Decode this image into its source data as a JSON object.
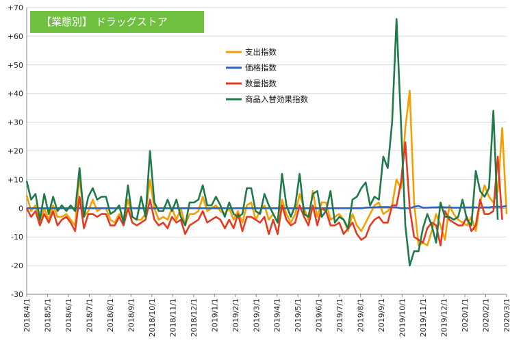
{
  "chart_data": {
    "type": "line",
    "title": "【業態別】 ドラッグストア",
    "title_bg": "#70c040",
    "ylim": [
      -30,
      70
    ],
    "y_ticks": [
      70,
      60,
      50,
      40,
      30,
      20,
      10,
      0,
      -10,
      -20,
      -30
    ],
    "y_tick_labels": [
      "+70",
      "+60",
      "+50",
      "+40",
      "+30",
      "+20",
      "+10",
      "0",
      "-10",
      "-20",
      "-30"
    ],
    "x_tick_labels": [
      "2018/4/1",
      "2018/5/1",
      "2018/6/1",
      "2018/7/1",
      "2018/8/1",
      "2018/9/1",
      "2018/10/1",
      "2018/11/1",
      "2018/12/1",
      "2019/1/1",
      "2019/2/1",
      "2019/3/1",
      "2019/4/1",
      "2019/5/1",
      "2019/6/1",
      "2019/7/1",
      "2019/8/1",
      "2019/9/1",
      "2019/10/1",
      "2019/11/1",
      "2019/12/1",
      "2020/1/1",
      "2020/2/1",
      "2020/3/1"
    ],
    "grid": true,
    "legend_position": "top-center",
    "series": [
      {
        "name": "支出指数",
        "color": "#f5a000",
        "values": [
          4.5,
          -1,
          1,
          -5,
          0,
          -4,
          1,
          -3,
          -3,
          -2,
          -4,
          -6,
          11,
          -3,
          -1,
          3,
          -1,
          0,
          0,
          -4,
          -5,
          -2,
          -4,
          3,
          -3,
          -4,
          -4,
          -2,
          10,
          0,
          -4,
          -3,
          -4,
          0,
          -4,
          0,
          -6,
          -2,
          -2,
          -1,
          4,
          -1,
          0,
          1,
          -1,
          -2,
          0,
          -4,
          -1,
          -5,
          1,
          2,
          -4,
          -1,
          1,
          -4,
          -2,
          -5,
          3,
          -2,
          -5,
          -2,
          5,
          0,
          -4,
          6,
          -3,
          2,
          2,
          -4,
          -3,
          -2,
          -4,
          -8,
          -2,
          -6,
          -8,
          -5,
          -2,
          1,
          2,
          -2,
          -1,
          1,
          10,
          7,
          28,
          41,
          2,
          -13,
          -12,
          -13,
          -8,
          -2,
          -6,
          -11,
          1,
          -2,
          -4,
          -5,
          -6,
          -3,
          -8,
          2,
          8,
          4,
          2,
          6,
          28,
          -2
        ]
      },
      {
        "name": "価格指数",
        "color": "#2a62c8",
        "values": [
          0,
          0,
          0,
          0,
          0,
          0,
          0,
          0,
          0,
          0,
          0,
          0,
          0,
          0,
          0,
          0,
          0,
          0,
          0,
          0,
          0,
          0,
          0,
          0,
          0,
          0,
          0,
          0,
          0,
          0,
          0,
          0,
          0,
          0,
          0,
          0,
          0,
          0,
          0,
          0,
          0,
          0,
          0,
          0,
          0,
          0,
          0,
          0,
          0,
          0,
          0,
          0,
          0,
          0,
          0,
          0,
          0,
          0,
          0,
          0,
          0,
          0,
          0,
          0,
          0,
          0,
          0,
          0,
          0,
          0,
          0,
          0,
          0,
          0,
          0,
          0,
          0,
          0.2,
          0.3,
          0.3,
          0.4,
          0.4,
          0.4,
          0.3,
          0.3,
          0,
          0,
          0,
          0.5,
          0.8,
          0.2,
          0.2,
          0.3,
          0.3,
          0.4,
          0.3,
          0.3,
          0.2,
          0.2,
          0.3,
          0.3,
          0.3,
          0.3,
          0.2,
          0.3,
          0.3,
          0.5,
          0.5,
          0.5,
          0.8
        ]
      },
      {
        "name": "数量指数",
        "color": "#e53a22",
        "values": [
          0,
          -3,
          -1,
          -6,
          -2,
          -5,
          -1,
          -6,
          -4,
          -3,
          -5,
          -8,
          4,
          -7,
          -2,
          -2,
          -3,
          -2,
          -2,
          -6,
          -6,
          -3,
          -6,
          0,
          -5,
          -6,
          -5,
          -4,
          3,
          -4,
          -6,
          -5,
          -7,
          -3,
          -5,
          -4,
          -9,
          -6,
          -5,
          -4,
          -1,
          -5,
          -4,
          -3,
          -4,
          -7,
          -4,
          -7,
          -2,
          -8,
          -3,
          -3,
          -4,
          -5,
          -3,
          -9,
          -4,
          -9,
          1,
          -4,
          -6,
          -5,
          1,
          -3,
          -6,
          1,
          -6,
          0,
          -1,
          -6,
          -6,
          -5,
          -9,
          -7,
          -5,
          -9,
          -11,
          -10,
          -6,
          -4,
          -3,
          -5,
          -5,
          1,
          1,
          9,
          23,
          0,
          -10,
          -11,
          -12,
          -7,
          -5,
          -6,
          -13,
          -1,
          -4,
          -5,
          -6,
          -6,
          -3,
          -8,
          -6,
          3,
          -2,
          -2,
          -1,
          18,
          -4
        ]
      },
      {
        "name": "商品入替効果指数",
        "color": "#1e7a48",
        "values": [
          9.5,
          3,
          5,
          -4,
          5,
          -2,
          4,
          -1,
          1,
          -1,
          1,
          -1,
          14,
          -3,
          4,
          7,
          3,
          4,
          4,
          -2,
          -1,
          1,
          -5,
          8,
          -3,
          -4,
          4,
          -3,
          20,
          2,
          -1,
          -1,
          3,
          -1,
          3,
          -3,
          -6,
          2,
          2,
          3,
          8,
          1,
          1,
          4,
          1,
          -3,
          2,
          -2,
          -3,
          -2,
          7,
          7,
          -1,
          -2,
          5,
          1,
          -2,
          -5,
          12,
          1,
          -3,
          1,
          12,
          -2,
          -3,
          5,
          6,
          -3,
          -1,
          6,
          -5,
          -3,
          -4,
          -7,
          3,
          4,
          7,
          9,
          1,
          4,
          3,
          18,
          14,
          30,
          66,
          30,
          -6,
          -20,
          -15,
          -15,
          -7,
          -2,
          -6,
          -12,
          2,
          -3,
          -3,
          -4,
          -3,
          3,
          -4,
          -6,
          13,
          6,
          4,
          7,
          34,
          -4
        ]
      }
    ]
  }
}
